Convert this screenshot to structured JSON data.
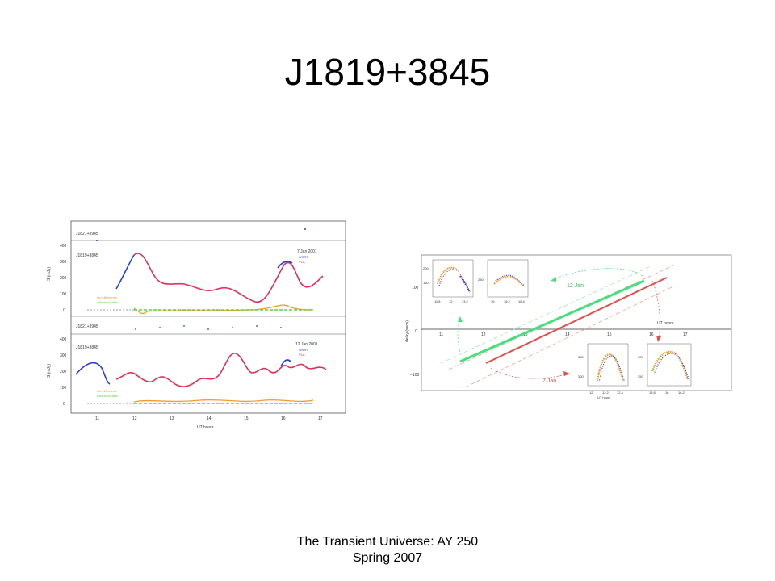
{
  "slide": {
    "title": "J1819+3845",
    "footer_line1": "The Transient Universe: AY 250",
    "footer_line2": "Spring 2007"
  },
  "left_figure": {
    "panels": {
      "top_ref": "J1821+3945",
      "top_main": "J1819+3845",
      "top_date": "7 Jan 2001",
      "bottom_ref": "J1821+3945",
      "bottom_main": "J1819+3845",
      "bottom_date": "12 Jan 2001"
    },
    "legend": {
      "wsrt": "WSRT",
      "vla": "VLA"
    },
    "ylabel": "S (mJy)",
    "xlabel": "UT hours",
    "x_ticks": [
      "11",
      "12",
      "13",
      "14",
      "15",
      "16",
      "17"
    ],
    "y_ticks": [
      "0",
      "100",
      "200",
      "300",
      "400"
    ],
    "notes": {
      "difference": "difference after",
      "flux_diff": "flux difference"
    },
    "colors": {
      "wsrt": "#2a3fd6",
      "vla": "#e0305a",
      "diff_orange": "#f59a2a",
      "diff_green": "#5fd44a"
    }
  },
  "right_figure": {
    "ylabel": "delay (secs)",
    "xlabel": "UT hours",
    "x_ticks": [
      "11",
      "12",
      "13",
      "14",
      "15",
      "16",
      "17"
    ],
    "y_ticks": [
      "100",
      "0",
      "−100"
    ],
    "annotation_green": "12 Jan",
    "annotation_red": "7 Jan",
    "inset_ylabel": "S (mJy)",
    "inset_xlabel": "UT hours",
    "insets": [
      {
        "x_ticks": [
          "11.8",
          "12",
          "13.2"
        ],
        "y_ticks": [
          "150",
          "200"
        ]
      },
      {
        "x_ticks": [
          "16",
          "16.2",
          "16.4"
        ],
        "y_ticks": [
          "250"
        ]
      },
      {
        "x_ticks": [
          "12",
          "12.2",
          "12.4"
        ],
        "y_ticks": [
          "350",
          "300"
        ]
      },
      {
        "x_ticks": [
          "15.8",
          "16",
          "16.2"
        ],
        "y_ticks": [
          "300",
          "350"
        ]
      }
    ],
    "colors": {
      "green": "#44e07a",
      "red": "#e0504a",
      "orange": "#f59a2a",
      "blue": "#2a3fd6"
    }
  }
}
